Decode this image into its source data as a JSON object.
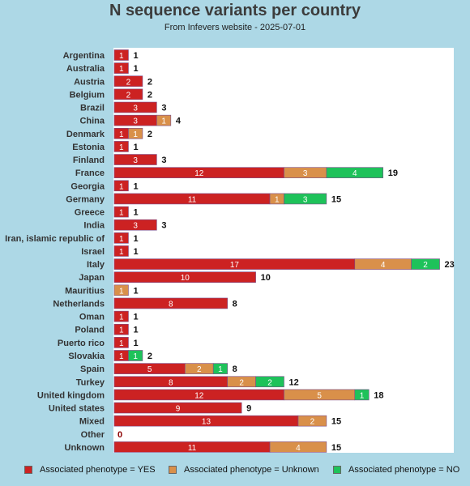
{
  "title": "N sequence variants per country",
  "subtitle": "From Infevers website - 2025-07-01",
  "colors": {
    "yes": "#cc2222",
    "unknown": "#d9904a",
    "no": "#1ec25a",
    "total": "#111111",
    "zero": "#8b0000"
  },
  "chart_data": {
    "type": "bar",
    "orientation": "horizontal",
    "stacked": true,
    "xlim": [
      0,
      24
    ],
    "grid": false,
    "legend_position": "bottom",
    "categories": [
      "Argentina",
      "Australia",
      "Austria",
      "Belgium",
      "Brazil",
      "China",
      "Denmark",
      "Estonia",
      "Finland",
      "France",
      "Georgia",
      "Germany",
      "Greece",
      "India",
      "Iran, islamic republic of",
      "Israel",
      "Italy",
      "Japan",
      "Mauritius",
      "Netherlands",
      "Oman",
      "Poland",
      "Puerto rico",
      "Slovakia",
      "Spain",
      "Turkey",
      "United kingdom",
      "United states",
      "Mixed",
      "Other",
      "Unknown"
    ],
    "series": [
      {
        "name": "Associated phenotype = YES",
        "values": [
          1,
          1,
          2,
          2,
          3,
          3,
          1,
          1,
          3,
          12,
          1,
          11,
          1,
          3,
          1,
          1,
          17,
          10,
          0,
          8,
          1,
          1,
          1,
          1,
          5,
          8,
          12,
          9,
          13,
          0,
          11
        ]
      },
      {
        "name": "Associated phenotype = Unknown",
        "values": [
          0,
          0,
          0,
          0,
          0,
          1,
          1,
          0,
          0,
          3,
          0,
          1,
          0,
          0,
          0,
          0,
          4,
          0,
          1,
          0,
          0,
          0,
          0,
          0,
          2,
          2,
          5,
          0,
          2,
          0,
          4
        ]
      },
      {
        "name": "Associated phenotype = NO",
        "values": [
          0,
          0,
          0,
          0,
          0,
          0,
          0,
          0,
          0,
          4,
          0,
          3,
          0,
          0,
          0,
          0,
          2,
          0,
          0,
          0,
          0,
          0,
          0,
          1,
          1,
          2,
          1,
          0,
          0,
          0,
          0
        ]
      }
    ],
    "totals": [
      1,
      1,
      2,
      2,
      3,
      4,
      2,
      1,
      3,
      19,
      1,
      15,
      1,
      3,
      1,
      1,
      23,
      10,
      1,
      8,
      1,
      1,
      1,
      2,
      8,
      12,
      18,
      9,
      15,
      0,
      15
    ]
  }
}
